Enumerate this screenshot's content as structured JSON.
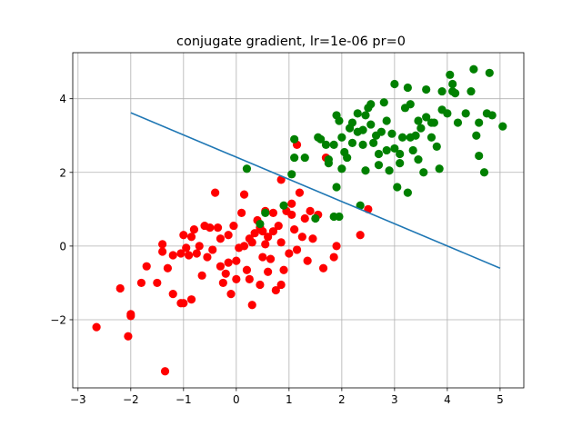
{
  "chart_data": {
    "type": "scatter",
    "title": "conjugate gradient, lr=1e-06 pr=0",
    "xlabel": "",
    "ylabel": "",
    "xlim": [
      -3.1,
      5.45
    ],
    "ylim": [
      -3.85,
      5.25
    ],
    "xticks": [
      -3,
      -2,
      -1,
      0,
      1,
      2,
      3,
      4,
      5
    ],
    "xtick_labels": [
      "−3",
      "−2",
      "−1",
      "0",
      "1",
      "2",
      "3",
      "4",
      "5"
    ],
    "yticks": [
      -2,
      0,
      2,
      4
    ],
    "ytick_labels": [
      "−2",
      "0",
      "2",
      "4"
    ],
    "grid": true,
    "legend": "none",
    "series": [
      {
        "color": "#ff0000",
        "marker": "circle",
        "points": [
          [
            -2.65,
            -2.2
          ],
          [
            -2.2,
            -1.15
          ],
          [
            -2.0,
            -1.85
          ],
          [
            -2.0,
            -1.9
          ],
          [
            -2.05,
            -2.45
          ],
          [
            -1.7,
            -0.55
          ],
          [
            -1.8,
            -1.0
          ],
          [
            -1.5,
            -1.0
          ],
          [
            -1.35,
            -3.4
          ],
          [
            -1.4,
            -0.15
          ],
          [
            -1.4,
            0.05
          ],
          [
            -1.2,
            -0.25
          ],
          [
            -1.2,
            -1.3
          ],
          [
            -1.05,
            -1.55
          ],
          [
            -1.0,
            -1.55
          ],
          [
            -0.85,
            -1.45
          ],
          [
            -1.05,
            -0.2
          ],
          [
            -1.0,
            0.3
          ],
          [
            -0.95,
            -0.05
          ],
          [
            -0.85,
            0.25
          ],
          [
            -0.8,
            0.45
          ],
          [
            -0.75,
            -0.2
          ],
          [
            -0.7,
            0.0
          ],
          [
            -0.65,
            -0.8
          ],
          [
            -0.55,
            -0.3
          ],
          [
            -0.5,
            0.5
          ],
          [
            -0.45,
            -0.1
          ],
          [
            -0.4,
            1.45
          ],
          [
            -0.35,
            0.5
          ],
          [
            -0.3,
            -0.55
          ],
          [
            -0.25,
            -1.0
          ],
          [
            -0.2,
            -0.75
          ],
          [
            -0.15,
            0.3
          ],
          [
            -0.1,
            -1.3
          ],
          [
            -0.05,
            0.55
          ],
          [
            0.0,
            -0.4
          ],
          [
            0.05,
            -0.05
          ],
          [
            0.1,
            0.9
          ],
          [
            0.15,
            1.4
          ],
          [
            0.2,
            -0.65
          ],
          [
            0.25,
            -0.9
          ],
          [
            0.25,
            0.2
          ],
          [
            0.3,
            -1.6
          ],
          [
            0.35,
            0.35
          ],
          [
            0.4,
            0.7
          ],
          [
            0.45,
            -1.05
          ],
          [
            0.5,
            -0.3
          ],
          [
            0.5,
            0.4
          ],
          [
            0.55,
            0.05
          ],
          [
            0.6,
            0.25
          ],
          [
            0.6,
            -0.7
          ],
          [
            0.65,
            -0.35
          ],
          [
            0.7,
            0.9
          ],
          [
            0.75,
            -1.2
          ],
          [
            0.8,
            0.55
          ],
          [
            0.85,
            0.1
          ],
          [
            0.9,
            -0.65
          ],
          [
            1.0,
            -0.2
          ],
          [
            1.05,
            0.85
          ],
          [
            1.1,
            0.45
          ],
          [
            1.15,
            -0.1
          ],
          [
            1.2,
            1.45
          ],
          [
            1.25,
            0.25
          ],
          [
            1.3,
            0.75
          ],
          [
            1.35,
            -0.4
          ],
          [
            1.05,
            1.15
          ],
          [
            1.15,
            2.75
          ],
          [
            0.85,
            1.8
          ],
          [
            1.45,
            0.2
          ],
          [
            1.55,
            0.85
          ],
          [
            1.65,
            -0.6
          ],
          [
            1.7,
            2.4
          ],
          [
            1.85,
            -0.3
          ],
          [
            1.9,
            0.0
          ],
          [
            2.35,
            0.3
          ],
          [
            2.5,
            1.0
          ],
          [
            -0.6,
            0.55
          ],
          [
            0.95,
            0.95
          ],
          [
            0.15,
            0.0
          ],
          [
            0.45,
            0.5
          ],
          [
            -0.9,
            -0.25
          ],
          [
            -1.3,
            -0.6
          ],
          [
            0.3,
            0.1
          ],
          [
            0.7,
            0.4
          ],
          [
            -0.3,
            0.2
          ],
          [
            1.4,
            0.95
          ],
          [
            0.55,
            0.95
          ],
          [
            0.0,
            -0.9
          ],
          [
            -0.15,
            -0.45
          ],
          [
            0.85,
            -1.05
          ]
        ]
      },
      {
        "color": "#008000",
        "marker": "circle",
        "points": [
          [
            0.2,
            2.1
          ],
          [
            0.45,
            0.6
          ],
          [
            0.55,
            0.9
          ],
          [
            0.9,
            1.1
          ],
          [
            1.05,
            1.95
          ],
          [
            1.1,
            2.9
          ],
          [
            1.1,
            2.4
          ],
          [
            1.3,
            2.4
          ],
          [
            1.5,
            0.75
          ],
          [
            1.55,
            2.95
          ],
          [
            1.7,
            2.75
          ],
          [
            1.75,
            2.35
          ],
          [
            1.75,
            2.25
          ],
          [
            1.85,
            2.75
          ],
          [
            1.9,
            3.55
          ],
          [
            1.9,
            1.6
          ],
          [
            1.95,
            0.8
          ],
          [
            1.95,
            3.4
          ],
          [
            2.0,
            2.95
          ],
          [
            2.05,
            2.55
          ],
          [
            2.1,
            2.4
          ],
          [
            2.15,
            3.2
          ],
          [
            2.2,
            2.8
          ],
          [
            2.3,
            3.1
          ],
          [
            2.35,
            1.1
          ],
          [
            2.4,
            2.75
          ],
          [
            2.4,
            3.15
          ],
          [
            2.45,
            3.55
          ],
          [
            2.45,
            2.05
          ],
          [
            2.5,
            3.75
          ],
          [
            2.55,
            3.3
          ],
          [
            2.6,
            2.8
          ],
          [
            2.65,
            3.0
          ],
          [
            2.7,
            2.5
          ],
          [
            2.75,
            3.1
          ],
          [
            2.8,
            3.9
          ],
          [
            2.85,
            2.6
          ],
          [
            2.9,
            2.05
          ],
          [
            2.95,
            3.05
          ],
          [
            3.0,
            2.65
          ],
          [
            3.05,
            1.6
          ],
          [
            3.1,
            2.25
          ],
          [
            3.15,
            2.95
          ],
          [
            3.2,
            3.75
          ],
          [
            3.25,
            1.45
          ],
          [
            3.3,
            2.95
          ],
          [
            3.35,
            2.6
          ],
          [
            3.4,
            3.0
          ],
          [
            3.45,
            2.35
          ],
          [
            3.5,
            3.2
          ],
          [
            3.55,
            2.0
          ],
          [
            3.6,
            3.5
          ],
          [
            3.7,
            2.95
          ],
          [
            3.75,
            3.35
          ],
          [
            3.8,
            2.7
          ],
          [
            3.85,
            2.1
          ],
          [
            3.9,
            4.2
          ],
          [
            4.0,
            3.6
          ],
          [
            4.05,
            4.65
          ],
          [
            4.1,
            4.4
          ],
          [
            4.15,
            4.15
          ],
          [
            4.2,
            3.35
          ],
          [
            4.35,
            3.6
          ],
          [
            4.5,
            4.8
          ],
          [
            4.55,
            3.0
          ],
          [
            4.6,
            2.45
          ],
          [
            4.7,
            2.0
          ],
          [
            4.75,
            3.6
          ],
          [
            4.8,
            4.7
          ],
          [
            4.85,
            3.55
          ],
          [
            5.05,
            3.25
          ],
          [
            3.0,
            4.4
          ],
          [
            3.25,
            4.3
          ],
          [
            3.6,
            4.25
          ],
          [
            2.55,
            3.85
          ],
          [
            2.3,
            3.6
          ],
          [
            3.45,
            3.4
          ],
          [
            2.0,
            2.1
          ],
          [
            2.85,
            3.4
          ],
          [
            3.9,
            3.7
          ],
          [
            4.1,
            4.2
          ],
          [
            4.6,
            3.35
          ],
          [
            3.1,
            2.5
          ],
          [
            2.7,
            2.2
          ],
          [
            1.6,
            2.9
          ],
          [
            3.7,
            3.35
          ],
          [
            2.2,
            3.35
          ],
          [
            3.3,
            3.85
          ],
          [
            1.85,
            0.8
          ],
          [
            4.45,
            4.2
          ]
        ]
      }
    ],
    "lines": [
      {
        "color": "#1f77b4",
        "x": [
          -2.0,
          5.0
        ],
        "y": [
          3.62,
          -0.6
        ]
      }
    ]
  }
}
